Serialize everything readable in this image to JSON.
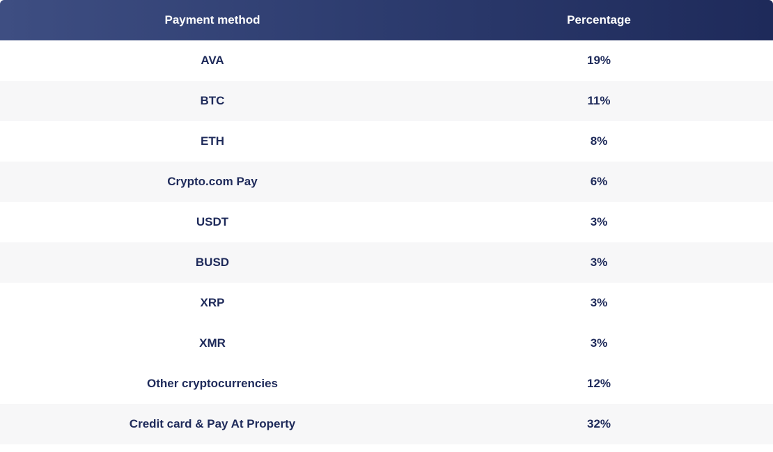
{
  "table": {
    "headers": {
      "method": "Payment method",
      "percentage": "Percentage"
    },
    "rows": [
      {
        "method": "AVA",
        "percentage": "19%"
      },
      {
        "method": "BTC",
        "percentage": "11%"
      },
      {
        "method": "ETH",
        "percentage": "8%"
      },
      {
        "method": "Crypto.com Pay",
        "percentage": "6%"
      },
      {
        "method": "USDT",
        "percentage": "3%"
      },
      {
        "method": "BUSD",
        "percentage": "3%"
      },
      {
        "method": "XRP",
        "percentage": "3%"
      },
      {
        "method": "XMR",
        "percentage": "3%"
      },
      {
        "method": "Other cryptocurrencies",
        "percentage": "12%"
      },
      {
        "method": "Credit card & Pay At Property",
        "percentage": "32%"
      }
    ]
  },
  "colors": {
    "header_gradient_start": "#3e4e82",
    "header_gradient_end": "#1e2a5a",
    "header_text": "#ffffff",
    "body_text": "#1e2a5a",
    "row_alt_bg": "#f7f7f8",
    "row_bg": "#ffffff"
  }
}
